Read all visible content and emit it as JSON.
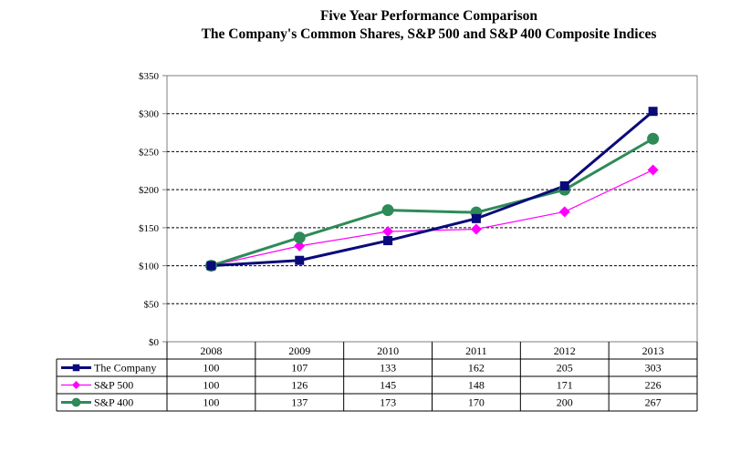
{
  "title_line1": "Five Year Performance Comparison",
  "title_line2": "The Company's Common Shares, S&P 500 and S&P 400 Composite Indices",
  "chart_data": {
    "type": "line",
    "title": "Five Year Performance Comparison",
    "subtitle": "The Company's Common Shares, S&P 500 and S&P 400 Composite Indices",
    "categories": [
      "2008",
      "2009",
      "2010",
      "2011",
      "2012",
      "2013"
    ],
    "y_ticks": [
      "$0",
      "$50",
      "$100",
      "$150",
      "$200",
      "$250",
      "$300",
      "$350"
    ],
    "ylim": [
      0,
      350
    ],
    "grid": true,
    "legend": "data table below chart",
    "series": [
      {
        "name": "The Company",
        "values": [
          100,
          107,
          133,
          162,
          205,
          303
        ],
        "color": "#0a0a7a",
        "marker": "square"
      },
      {
        "name": "S&P 500",
        "values": [
          100,
          126,
          145,
          148,
          171,
          226
        ],
        "color": "#ff00ff",
        "marker": "diamond"
      },
      {
        "name": "S&P 400",
        "values": [
          100,
          137,
          173,
          170,
          200,
          267
        ],
        "color": "#2e8b57",
        "marker": "circle"
      }
    ]
  }
}
